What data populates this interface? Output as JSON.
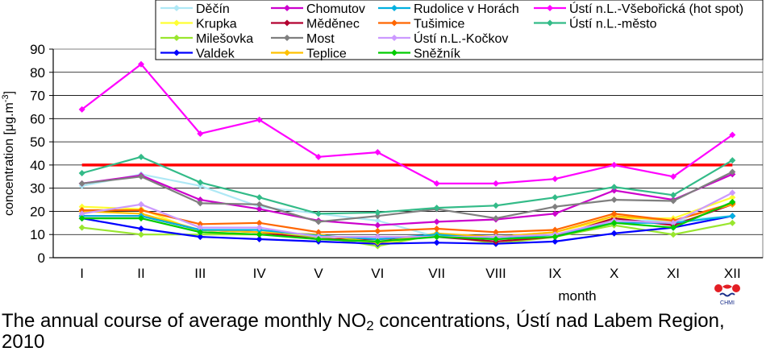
{
  "chart_data": {
    "type": "line",
    "title": "",
    "xlabel": "month",
    "ylabel": "concentration [μg.m-3]",
    "ylabel_parts": {
      "main": "concentration [μg.m",
      "sup": "-3",
      "end": "]"
    },
    "ylim": [
      0,
      90
    ],
    "yticks": [
      "0",
      "10",
      "20",
      "30",
      "40",
      "50",
      "60",
      "70",
      "80",
      "90"
    ],
    "categories": [
      "I",
      "II",
      "III",
      "IV",
      "V",
      "VI",
      "VII",
      "VIII",
      "IX",
      "X",
      "XI",
      "XII"
    ],
    "grid": "horizontal",
    "legend_position": "top",
    "limit_line": {
      "value": 40,
      "color": "#ff0000"
    },
    "series": [
      {
        "name": "Děčín",
        "color": "#aee8f5",
        "values": [
          31,
          36,
          31,
          22,
          19,
          16,
          9,
          8,
          10,
          16,
          16,
          18
        ]
      },
      {
        "name": "Krupka",
        "color": "#ffff33",
        "values": [
          22,
          21,
          11,
          10,
          10,
          6,
          10,
          9,
          11,
          17,
          17,
          26
        ]
      },
      {
        "name": "Milešovka",
        "color": "#99e62e",
        "values": [
          13,
          10,
          10,
          10,
          9,
          5,
          10,
          6,
          9,
          14,
          10,
          15
        ]
      },
      {
        "name": "Valdek",
        "color": "#0000ff",
        "values": [
          17,
          12.5,
          9,
          8,
          7,
          6,
          6.5,
          6,
          7,
          10.5,
          13,
          18
        ]
      },
      {
        "name": "Chomutov",
        "color": "#cc00cc",
        "values": [
          32,
          35.5,
          25,
          21,
          16,
          14,
          15.5,
          16.5,
          19,
          29,
          25,
          36
        ]
      },
      {
        "name": "Měděnec",
        "color": "#b30030",
        "values": [
          18,
          18,
          12,
          11,
          8,
          8,
          9,
          7,
          9,
          17,
          14,
          23
        ]
      },
      {
        "name": "Most",
        "color": "#7f7f7f",
        "values": [
          32,
          35,
          23.5,
          23,
          15.5,
          18,
          21,
          17,
          22,
          25,
          24.5,
          37
        ]
      },
      {
        "name": "Teplice",
        "color": "#ffc000",
        "values": [
          20,
          19,
          12,
          11,
          10,
          6.5,
          10.5,
          9,
          11,
          18,
          16,
          23
        ]
      },
      {
        "name": "Rudolice v Horách",
        "color": "#00b0e0",
        "values": [
          18,
          18,
          12,
          12,
          9.5,
          8,
          10,
          8,
          10,
          15,
          15,
          18
        ]
      },
      {
        "name": "Tušimice",
        "color": "#ff6600",
        "values": [
          20.5,
          20.5,
          14.5,
          15,
          11,
          11.5,
          12.5,
          11,
          12,
          19,
          16,
          23.5
        ]
      },
      {
        "name": "Ústí n.L.-Kočkov",
        "color": "#cc99ff",
        "values": [
          19,
          23,
          13,
          13,
          9,
          9,
          9,
          9,
          10,
          16,
          15,
          28
        ]
      },
      {
        "name": "Sněžník",
        "color": "#00cc00",
        "values": [
          17,
          17,
          11,
          10,
          8,
          7,
          9,
          8,
          9,
          15,
          13,
          24
        ]
      },
      {
        "name": "Ústí n.L.-Všebořická (hot spot)",
        "color": "#ff00ff",
        "values": [
          64,
          83.5,
          53.5,
          59.5,
          43.5,
          45.5,
          32,
          32,
          34,
          40,
          35,
          53
        ]
      },
      {
        "name": "Ústí n.L.-město",
        "color": "#33bb88",
        "values": [
          36.5,
          43.5,
          32.5,
          26,
          19,
          19.5,
          21.5,
          22.5,
          26,
          30.5,
          27,
          42
        ]
      }
    ]
  },
  "caption": {
    "before": "The annual course of average monthly NO",
    "sub": "2",
    "after": " concentrations, Ústí nad Labem Region, 2010"
  },
  "logo": {
    "text": "CHMI"
  }
}
